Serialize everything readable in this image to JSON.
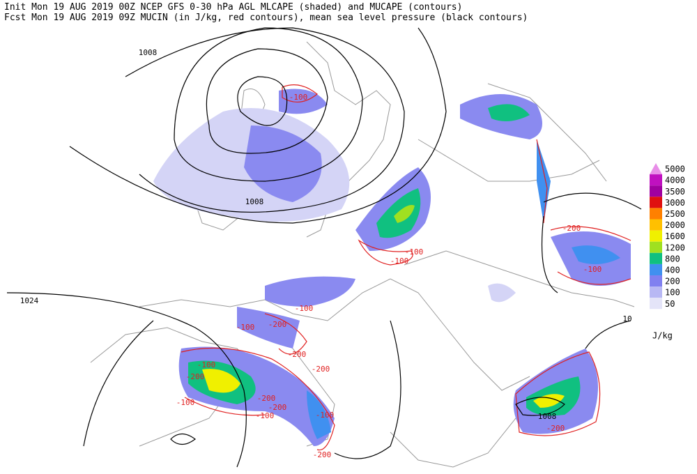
{
  "header": {
    "line1": "Init  Mon 19 AUG 2019 00Z  NCEP GFS 0-30 hPa AGL MLCAPE (shaded) and MUCAPE (contours)",
    "line2": "Fcst Mon 19 AUG 2019 09Z  MUCIN (in J/kg, red contours), mean sea level pressure (black contours)"
  },
  "legend": {
    "unit": "J/kg",
    "items": [
      {
        "label": "5000",
        "color": "#e88ee8"
      },
      {
        "label": "4000",
        "color": "#c010c0"
      },
      {
        "label": "3500",
        "color": "#a000a0"
      },
      {
        "label": "3000",
        "color": "#e01010"
      },
      {
        "label": "2500",
        "color": "#ff8000"
      },
      {
        "label": "2000",
        "color": "#ffc000"
      },
      {
        "label": "1600",
        "color": "#f0f000"
      },
      {
        "label": "1200",
        "color": "#a0e020"
      },
      {
        "label": "800",
        "color": "#10c080"
      },
      {
        "label": "400",
        "color": "#4090f0"
      },
      {
        "label": "200",
        "color": "#8080f0"
      },
      {
        "label": "100",
        "color": "#b8b8f4"
      },
      {
        "label": "50",
        "color": "#e4e4f8"
      }
    ]
  },
  "isobar_labels": [
    "1008",
    "1008",
    "1024",
    "1008",
    "10"
  ],
  "cin_labels": [
    "-100",
    "-100",
    "-100",
    "-200",
    "-100",
    "-100",
    "-100",
    "-200",
    "-200",
    "-200",
    "-100",
    "-200",
    "-200",
    "-200",
    "-100",
    "-100",
    "-100",
    "-200",
    "-200"
  ]
}
